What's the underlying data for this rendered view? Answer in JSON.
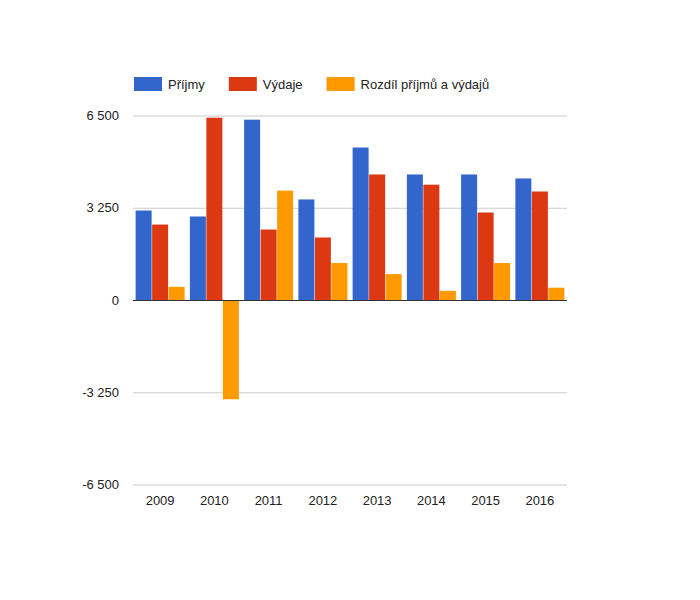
{
  "chart_data": {
    "type": "bar",
    "categories": [
      "2009",
      "2010",
      "2011",
      "2012",
      "2013",
      "2014",
      "2015",
      "2016"
    ],
    "series": [
      {
        "name": "Příjmy",
        "color": "#3366cc",
        "values": [
          3170,
          2960,
          6370,
          3560,
          5390,
          4440,
          4440,
          4300
        ]
      },
      {
        "name": "Výdaje",
        "color": "#dc3912",
        "values": [
          2675,
          6440,
          2500,
          2220,
          4440,
          4080,
          3100,
          3840
        ]
      },
      {
        "name": "Rozdíl příjmů a výdajů",
        "color": "#ff9900",
        "values": [
          480,
          -3480,
          3870,
          1320,
          930,
          340,
          1320,
          450
        ]
      }
    ],
    "ylim": [
      -6500,
      6500
    ],
    "yticks": [
      {
        "value": -6500,
        "label": "-6 500"
      },
      {
        "value": -3250,
        "label": "-3 250"
      },
      0,
      {
        "value": 3250,
        "label": "3 250"
      },
      {
        "value": 6500,
        "label": "6 500"
      }
    ],
    "grid": true,
    "legend": "top"
  }
}
